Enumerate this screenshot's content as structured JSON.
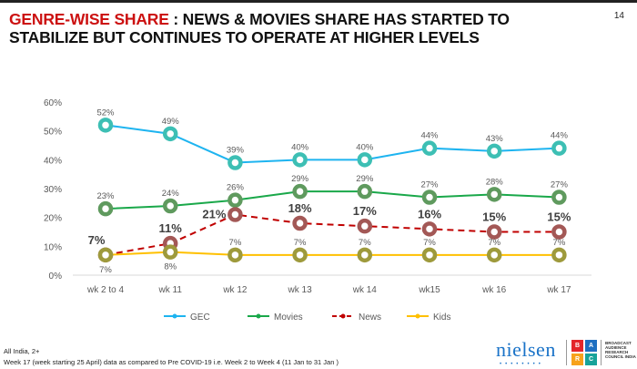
{
  "header": {
    "title_highlight": "GENRE-WISE SHARE",
    "title_rest": " : NEWS & MOVIES SHARE HAS STARTED TO STABILIZE BUT CONTINUES TO OPERATE AT HIGHER LEVELS",
    "page_number": "14"
  },
  "chart_data": {
    "type": "line",
    "categories": [
      "wk 2 to 4",
      "wk 11",
      "wk 12",
      "wk 13",
      "wk 14",
      "wk15",
      "wk 16",
      "wk 17"
    ],
    "ylim": [
      0,
      60
    ],
    "yticks": [
      "0%",
      "10%",
      "20%",
      "30%",
      "40%",
      "50%",
      "60%"
    ],
    "legend_position": "bottom",
    "series": [
      {
        "name": "GEC",
        "values": [
          52,
          49,
          39,
          40,
          40,
          44,
          43,
          44
        ],
        "line": "#1eb4f0",
        "marker": "#3dbfb4",
        "dashed": false,
        "bold_labels": false
      },
      {
        "name": "Movies",
        "values": [
          23,
          24,
          26,
          29,
          29,
          27,
          28,
          27
        ],
        "line": "#1aa84a",
        "marker": "#5f9a5e",
        "dashed": false,
        "bold_labels": false
      },
      {
        "name": "News",
        "values": [
          7,
          11,
          21,
          18,
          17,
          16,
          15,
          15
        ],
        "line": "#c00000",
        "marker": "#a35856",
        "dashed": true,
        "bold_labels": true
      },
      {
        "name": "Kids",
        "values": [
          7,
          8,
          7,
          7,
          7,
          7,
          7,
          7
        ],
        "line": "#ffc000",
        "marker": "#9e9a3c",
        "dashed": false,
        "bold_labels": false
      }
    ]
  },
  "footer": {
    "line1": "All India, 2+",
    "line2": "Week 17 (week starting 25 April) data as compared to Pre COVID-19 i.e. Week 2 to Week 4 (11 Jan to 31 Jan )"
  },
  "logo": {
    "nielsen": "nielsen",
    "barc": [
      "B",
      "A",
      "R",
      "C"
    ],
    "council": "BROADCAST AUDIENCE RESEARCH COUNCIL INDIA"
  }
}
